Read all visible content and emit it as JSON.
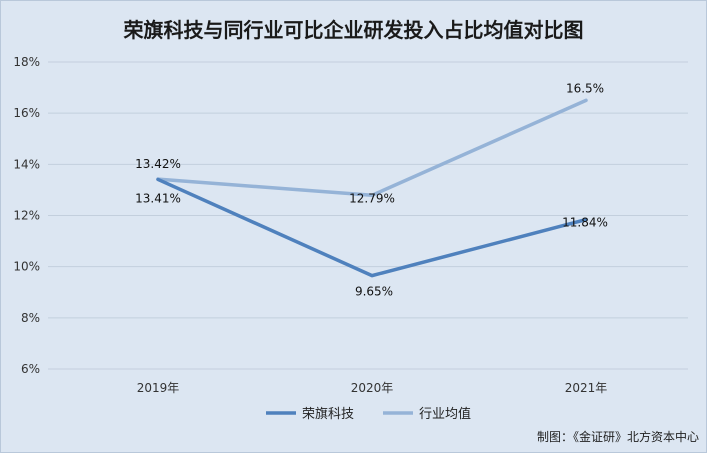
{
  "chart_data": {
    "type": "line",
    "title": "荣旗科技与同行业可比企业研发投入占比均值对比图",
    "categories": [
      "2019年",
      "2020年",
      "2021年"
    ],
    "ylim": [
      6,
      18
    ],
    "yticks": [
      6,
      8,
      10,
      12,
      14,
      16,
      18
    ],
    "ytick_labels": [
      "6%",
      "8%",
      "10%",
      "12%",
      "14%",
      "16%",
      "18%"
    ],
    "grid": true,
    "legend_position": "bottom",
    "series": [
      {
        "name": "荣旗科技",
        "values": [
          13.41,
          9.65,
          11.84
        ],
        "labels": [
          "13.41%",
          "9.65%",
          "11.84%"
        ],
        "color": "#4f81bd"
      },
      {
        "name": "行业均值",
        "values": [
          13.42,
          12.79,
          16.5
        ],
        "labels": [
          "13.42%",
          "12.79%",
          "16.5%"
        ],
        "color": "#95b3d7"
      }
    ]
  },
  "credit": "制图：《金证研》北方资本中心"
}
